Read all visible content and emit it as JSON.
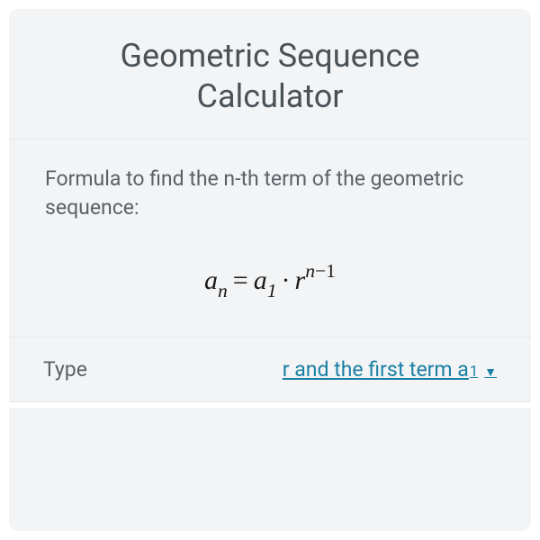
{
  "card": {
    "title": "Geometric Sequence Calculator",
    "background_color": "#f3f4f5",
    "border_color": "#e4e6e8",
    "title_color": "#4a5258",
    "title_fontsize": 36
  },
  "formula_section": {
    "label": "Formula to find the n-th term of the geometric sequence:",
    "label_color": "#5a6168",
    "label_fontsize": 23,
    "formula": {
      "raw": "a_n = a_1 · r^{n-1}",
      "color": "#1a1a1a",
      "fontsize": 30
    }
  },
  "type_row": {
    "label": "Type",
    "label_color": "#5a6168",
    "value_prefix": "r and the first term a",
    "value_sub": "1",
    "value_color": "#1a7fa3",
    "caret": "▼"
  }
}
